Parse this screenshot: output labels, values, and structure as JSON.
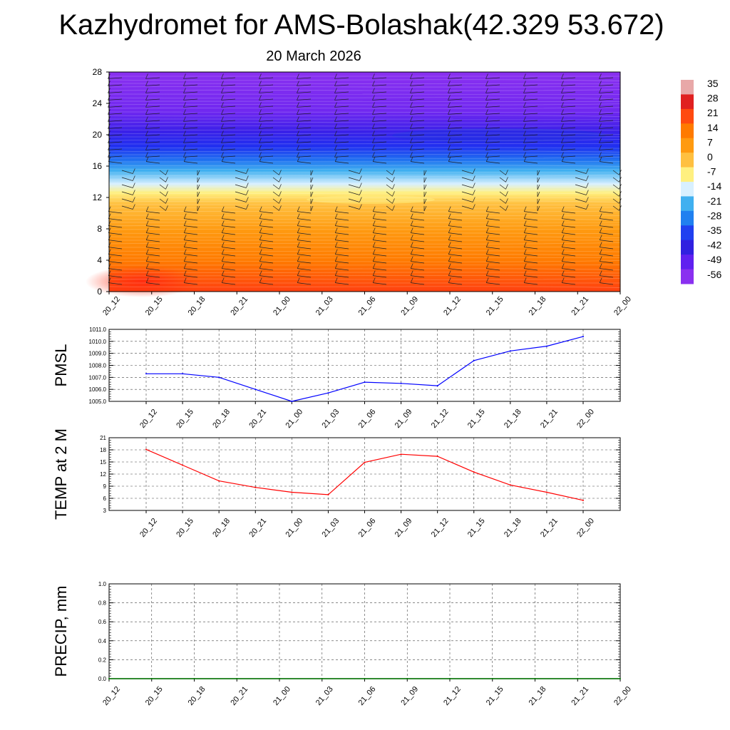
{
  "title": "Kazhydromet for AMS-Bolashak(42.329 53.672)",
  "date": "20 March 2026",
  "time_labels": [
    "20_12",
    "20_15",
    "20_18",
    "20_21",
    "21_00",
    "21_03",
    "21_06",
    "21_09",
    "21_12",
    "21_15",
    "21_18",
    "21_21",
    "22_00"
  ],
  "colorbar": {
    "labels": [
      "35",
      "28",
      "21",
      "14",
      "7",
      "0",
      "-7",
      "-14",
      "-21",
      "-28",
      "-35",
      "-42",
      "-49",
      "-56"
    ],
    "colors": [
      "#e8a8a8",
      "#e02020",
      "#ff4a10",
      "#ff7a00",
      "#ff9a10",
      "#ffc040",
      "#fff080",
      "#d8f0ff",
      "#40b0f0",
      "#2080f0",
      "#2040f0",
      "#3020e0",
      "#6020f0",
      "#8a30f0"
    ]
  },
  "chart_data": [
    {
      "type": "heatmap",
      "title": "Kazhydromet for AMS-Bolashak(42.329 53.672)",
      "subtitle": "20 March 2026",
      "xlabel": "",
      "ylabel": "",
      "categories": [
        "20_12",
        "20_15",
        "20_18",
        "20_21",
        "21_00",
        "21_03",
        "21_06",
        "21_09",
        "21_12",
        "21_15",
        "21_18",
        "21_21",
        "22_00"
      ],
      "y_ticks": [
        0,
        4,
        8,
        12,
        16,
        20,
        24,
        28
      ],
      "ylim": [
        0,
        28
      ],
      "colorbar_range": [
        -56,
        35
      ],
      "description_levels": [
        {
          "y": 0,
          "value": 21
        },
        {
          "y": 2,
          "value": 14
        },
        {
          "y": 4,
          "value": 10
        },
        {
          "y": 8,
          "value": 7
        },
        {
          "y": 11,
          "value": 0
        },
        {
          "y": 12,
          "value": -10
        },
        {
          "y": 14,
          "value": -21
        },
        {
          "y": 16,
          "value": -35
        },
        {
          "y": 18,
          "value": -49
        },
        {
          "y": 22,
          "value": -49
        },
        {
          "y": 28,
          "value": -56
        }
      ]
    },
    {
      "type": "line",
      "ylabel": "PMSL",
      "categories": [
        "20_12",
        "20_15",
        "20_18",
        "20_21",
        "21_00",
        "21_03",
        "21_06",
        "21_09",
        "21_12",
        "21_15",
        "21_18",
        "21_21",
        "22_00"
      ],
      "series": [
        {
          "name": "PMSL",
          "color": "#0000ff",
          "values": [
            1007.3,
            1007.3,
            1007.0,
            1006.0,
            1005.0,
            1005.7,
            1006.6,
            1006.5,
            1006.3,
            1008.4,
            1009.2,
            1009.6,
            1010.4
          ]
        }
      ],
      "y_ticks": [
        "1005.0",
        "1006.0",
        "1007.0",
        "1008.0",
        "1009.0",
        "1010.0",
        "1011.0"
      ],
      "ylim": [
        1005,
        1011
      ]
    },
    {
      "type": "line",
      "ylabel": "TEMP at 2 M",
      "categories": [
        "20_12",
        "20_15",
        "20_18",
        "20_21",
        "21_00",
        "21_03",
        "21_06",
        "21_09",
        "21_12",
        "21_15",
        "21_18",
        "21_21",
        "22_00"
      ],
      "series": [
        {
          "name": "TEMP at 2 M",
          "color": "#ff0000",
          "values": [
            18.1,
            14.2,
            10.3,
            8.7,
            7.5,
            6.9,
            14.9,
            16.9,
            16.4,
            12.5,
            9.3,
            7.5,
            5.5
          ]
        }
      ],
      "y_ticks": [
        "3",
        "6",
        "9",
        "12",
        "15",
        "18",
        "21"
      ],
      "ylim": [
        3,
        21
      ]
    },
    {
      "type": "line",
      "ylabel": "PRECIP, mm",
      "categories": [
        "20_12",
        "20_15",
        "20_18",
        "20_21",
        "21_00",
        "21_03",
        "21_06",
        "21_09",
        "21_12",
        "21_15",
        "21_18",
        "21_21",
        "22_00"
      ],
      "series": [
        {
          "name": "PRECIP",
          "color": "#007000",
          "values": [
            0,
            0,
            0,
            0,
            0,
            0,
            0,
            0,
            0,
            0,
            0,
            0,
            0
          ]
        }
      ],
      "y_ticks": [
        "0.0",
        "0.2",
        "0.4",
        "0.6",
        "0.8",
        "1.0"
      ],
      "ylim": [
        0,
        1
      ]
    }
  ]
}
